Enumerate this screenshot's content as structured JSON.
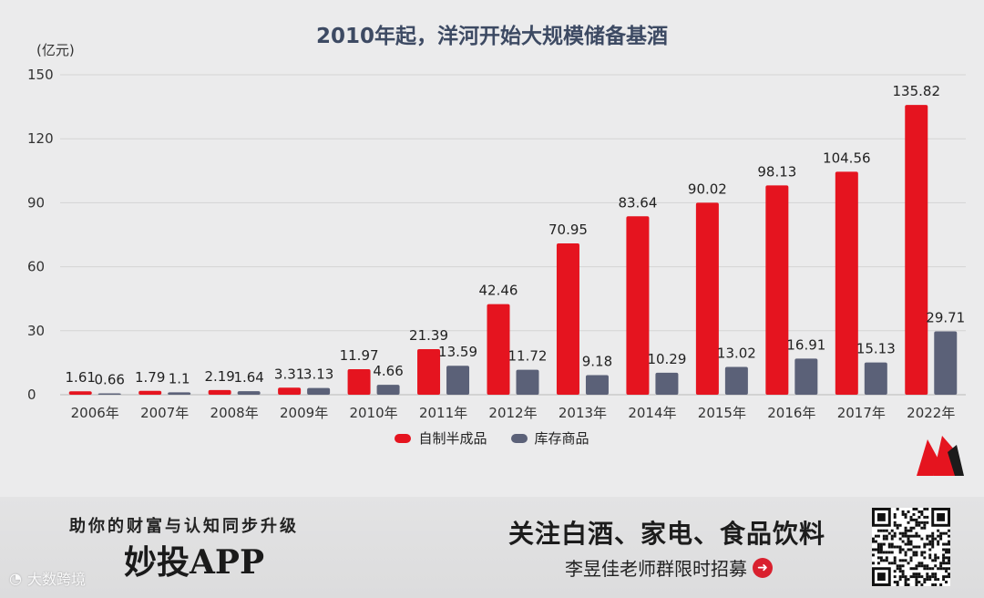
{
  "chart_data": {
    "type": "bar",
    "title": "2010年起，洋河开始大规模储备基酒",
    "unit_label": "(亿元)",
    "categories": [
      "2006年",
      "2007年",
      "2008年",
      "2009年",
      "2010年",
      "2011年",
      "2012年",
      "2013年",
      "2014年",
      "2015年",
      "2016年",
      "2017年",
      "2022年"
    ],
    "series": [
      {
        "name": "自制半成品",
        "color": "#e5141f",
        "values": [
          1.61,
          1.79,
          2.19,
          3.31,
          11.97,
          21.39,
          42.46,
          70.95,
          83.64,
          90.02,
          98.13,
          104.56,
          135.82
        ]
      },
      {
        "name": "库存商品",
        "color": "#5b6178",
        "values": [
          0.66,
          1.1,
          1.64,
          3.13,
          4.66,
          13.59,
          11.72,
          9.18,
          10.29,
          13.02,
          16.91,
          15.13,
          29.71
        ]
      }
    ],
    "y_ticks": [
      0,
      30,
      60,
      90,
      120,
      150
    ],
    "ylim": [
      0,
      150
    ],
    "grid": true,
    "legend_position": "bottom"
  },
  "banner": {
    "slogan": "助你的财富与认知同步升级",
    "app_name": "妙投APP",
    "follow_text": "关注白酒、家电、食品饮料",
    "recruit_text": "李昱佳老师群限时招募",
    "arrow_icon": "arrow-right-circle-icon",
    "watermark_text": "大数跨境"
  }
}
